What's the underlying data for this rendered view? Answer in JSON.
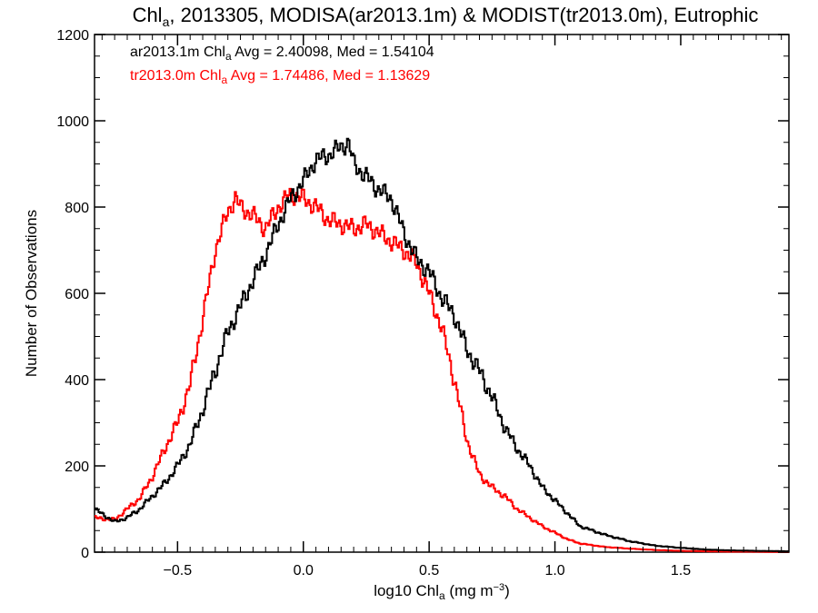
{
  "chart_data": {
    "type": "line",
    "step": true,
    "title": {
      "pre": "Chl",
      "sub": "a",
      "post": ", 2013305, MODISA(ar2013.1m) & MODIST(tr2013.0m), Eutrophic"
    },
    "xlabel": {
      "pre": "log10 Chl",
      "sub": "a",
      "post": " (mg m",
      "sup": "−3",
      "end": ")"
    },
    "ylabel": "Number of Observations",
    "xlim": [
      -0.83,
      1.93
    ],
    "ylim": [
      0,
      1200
    ],
    "xticks": [
      -0.5,
      0.0,
      0.5,
      1.0,
      1.5
    ],
    "xtick_labels": [
      "−0.5",
      "0.0",
      "0.5",
      "1.0",
      "1.5"
    ],
    "yticks": [
      0,
      200,
      400,
      600,
      800,
      1000,
      1200
    ],
    "ytick_labels": [
      "0",
      "200",
      "400",
      "600",
      "800",
      "1000",
      "1200"
    ],
    "grid": false,
    "annotations": [
      {
        "pre": "ar2013.1m Chl",
        "sub": "a",
        "post": " Avg = 2.40098, Med = 1.54104",
        "color": "#000000"
      },
      {
        "pre": "tr2013.0m Chl",
        "sub": "a",
        "post": " Avg = 1.74486, Med = 1.13629",
        "color": "#ff0000"
      }
    ],
    "series": [
      {
        "color": "#000000",
        "x": [
          -0.83,
          -0.75,
          -0.7,
          -0.65,
          -0.6,
          -0.55,
          -0.5,
          -0.45,
          -0.4,
          -0.35,
          -0.3,
          -0.25,
          -0.2,
          -0.15,
          -0.1,
          -0.05,
          0.0,
          0.05,
          0.1,
          0.15,
          0.18,
          0.2,
          0.25,
          0.3,
          0.35,
          0.4,
          0.45,
          0.5,
          0.55,
          0.6,
          0.65,
          0.7,
          0.75,
          0.8,
          0.85,
          0.9,
          0.95,
          1.0,
          1.05,
          1.1,
          1.2,
          1.3,
          1.4,
          1.5,
          1.6,
          1.7,
          1.8,
          1.93
        ],
        "y": [
          100,
          70,
          80,
          100,
          130,
          160,
          200,
          250,
          330,
          420,
          510,
          570,
          630,
          690,
          760,
          820,
          860,
          910,
          920,
          940,
          950,
          900,
          870,
          840,
          820,
          740,
          680,
          650,
          590,
          550,
          470,
          420,
          360,
          290,
          240,
          200,
          150,
          120,
          90,
          60,
          40,
          25,
          15,
          10,
          6,
          4,
          3,
          2
        ]
      },
      {
        "color": "#ff0000",
        "x": [
          -0.83,
          -0.75,
          -0.7,
          -0.65,
          -0.6,
          -0.55,
          -0.5,
          -0.45,
          -0.42,
          -0.4,
          -0.35,
          -0.3,
          -0.27,
          -0.25,
          -0.2,
          -0.15,
          -0.1,
          -0.05,
          0.0,
          0.05,
          0.1,
          0.15,
          0.2,
          0.25,
          0.3,
          0.35,
          0.4,
          0.45,
          0.5,
          0.55,
          0.6,
          0.65,
          0.7,
          0.75,
          0.8,
          0.85,
          0.9,
          0.95,
          1.0,
          1.05,
          1.1,
          1.2,
          1.3,
          1.4,
          1.5,
          1.6,
          1.7,
          1.8,
          1.93
        ],
        "y": [
          80,
          75,
          100,
          125,
          175,
          240,
          300,
          390,
          480,
          540,
          700,
          790,
          820,
          800,
          780,
          750,
          800,
          830,
          820,
          800,
          770,
          760,
          750,
          760,
          740,
          720,
          700,
          670,
          600,
          520,
          400,
          260,
          180,
          150,
          130,
          100,
          80,
          60,
          45,
          30,
          20,
          12,
          8,
          5,
          3,
          2,
          1,
          1,
          0
        ]
      }
    ]
  }
}
